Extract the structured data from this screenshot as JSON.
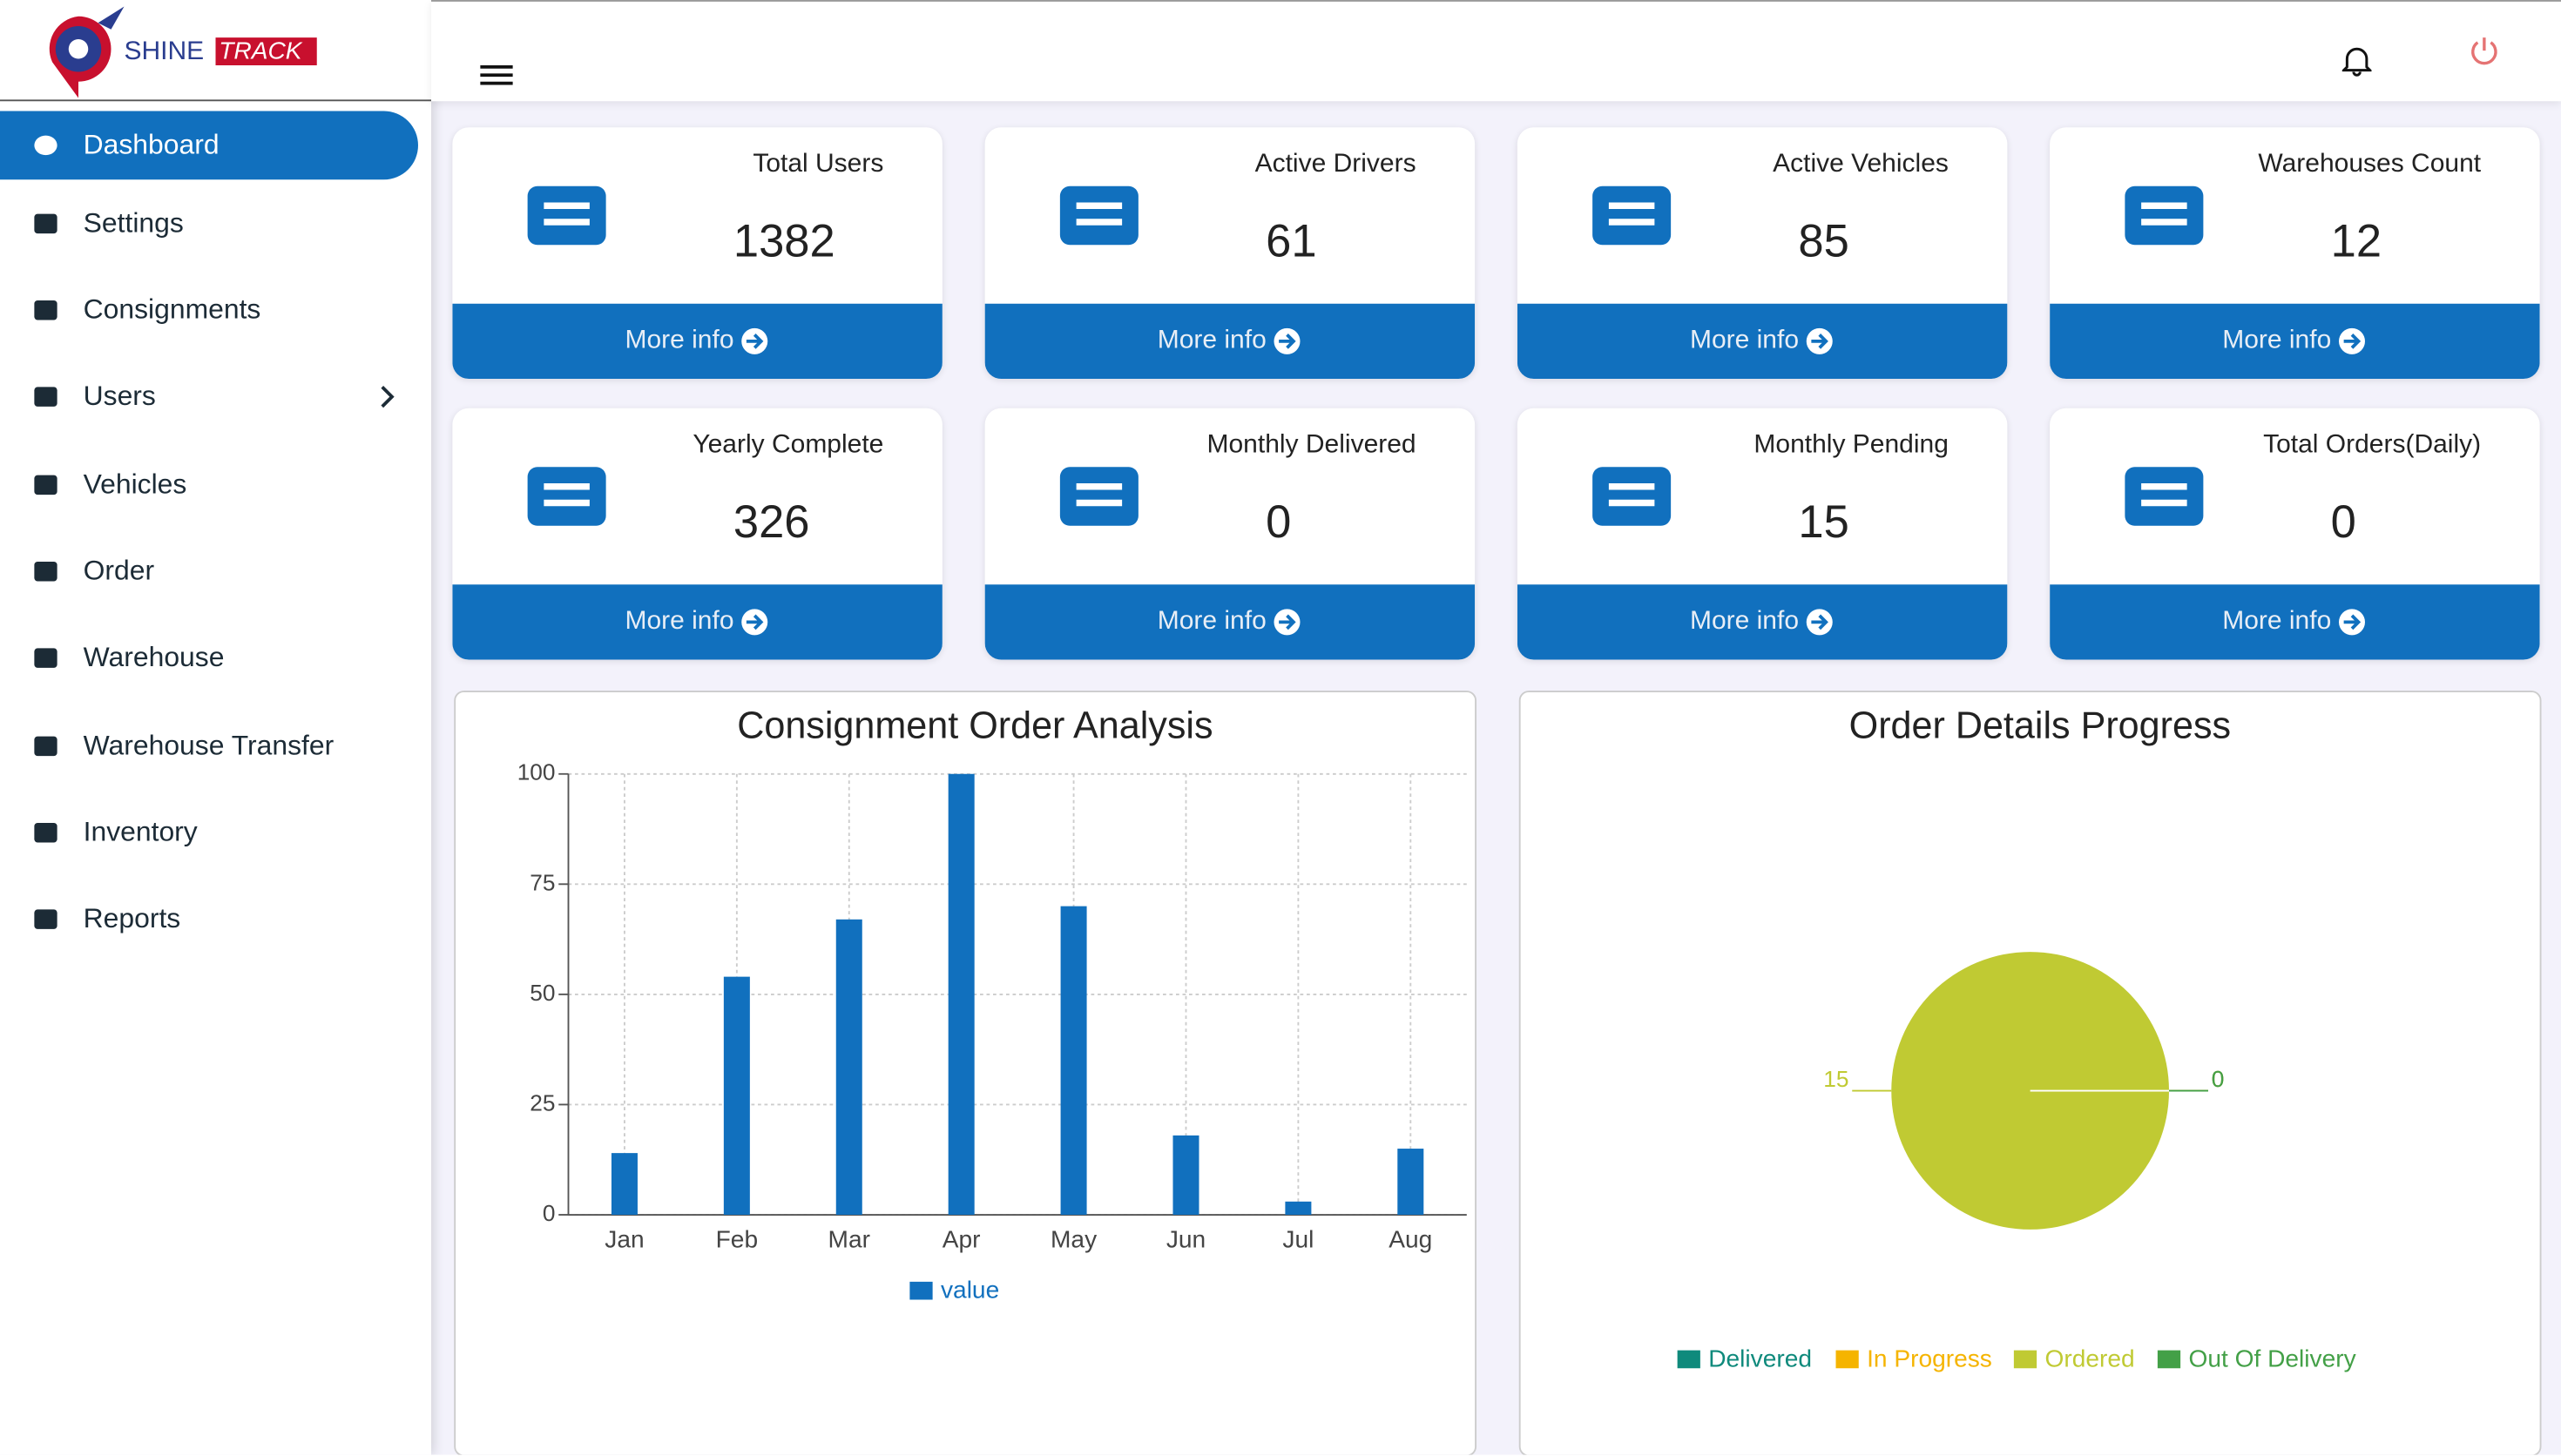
{
  "logo": {
    "text1": "SHINE",
    "text2": "TRACK"
  },
  "sidebar": {
    "menu": [
      "Dashboard",
      "Settings",
      "Consignments",
      "Users",
      "Vehicles",
      "Order",
      "Warehouse",
      "Warehouse Transfer",
      "Inventory",
      "Reports"
    ]
  },
  "cards": [
    {
      "title": "Total Users",
      "value": 1382,
      "link": "More info"
    },
    {
      "title": "Active Drivers",
      "value": 61,
      "link": "More info"
    },
    {
      "title": "Active Vehicles",
      "value": 85,
      "link": "More info"
    },
    {
      "title": "Warehouses Count",
      "value": 12,
      "link": "More info"
    },
    {
      "title": "Yearly Complete",
      "value": 326,
      "link": "More info"
    },
    {
      "title": "Monthly Delivered",
      "value": 0,
      "link": "More info"
    },
    {
      "title": "Monthly Pending",
      "value": 15,
      "link": "More info"
    },
    {
      "title": "Total Orders(Daily)",
      "value": 0,
      "link": "More info"
    }
  ],
  "chart_data": [
    {
      "type": "bar",
      "title": "Consignment Order Analysis",
      "categories": [
        "Jan",
        "Feb",
        "Mar",
        "Apr",
        "May",
        "Jun",
        "Jul",
        "Aug"
      ],
      "series": [
        {
          "name": "value",
          "color": "#1170be",
          "values": [
            14,
            54,
            67,
            100,
            70,
            18,
            3,
            15
          ]
        }
      ],
      "ylim": [
        0,
        100
      ],
      "yticks": [
        0,
        25,
        50,
        75,
        100
      ],
      "grid": true,
      "legend": "bottom"
    },
    {
      "type": "pie",
      "title": "Order Details Progress",
      "categories": [
        "Delivered",
        "In Progress",
        "Ordered",
        "Out Of Delivery"
      ],
      "values": [
        0,
        0,
        15,
        0
      ],
      "colors": [
        "#0f8a7c",
        "#f5b400",
        "#c0ca33",
        "#43a047"
      ],
      "legend": "bottom"
    }
  ]
}
